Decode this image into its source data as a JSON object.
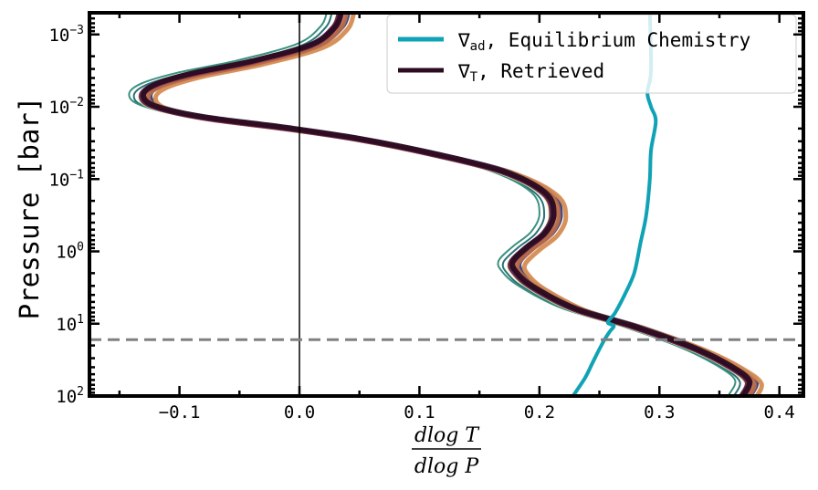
{
  "chart_data": {
    "type": "line",
    "title": "",
    "xlabel_numerator": "dlog T",
    "xlabel_denominator": "dlog P",
    "ylabel": "Pressure [bar]",
    "xlim": [
      -0.175,
      0.42
    ],
    "ylim_log10_pressure": [
      -3.3,
      2.0
    ],
    "y_scale": "log (inverted: low pressure at top)",
    "x_ticks": [
      -0.1,
      0.0,
      0.1,
      0.2,
      0.3,
      0.4
    ],
    "x_tick_labels": [
      "−0.1",
      "0.0",
      "0.1",
      "0.2",
      "0.3",
      "0.4"
    ],
    "y_tick_exponents": [
      "-3",
      "-2",
      "-1",
      "0",
      "1",
      "2"
    ],
    "y_tick_base": "10",
    "vertical_reference_x": 0.0,
    "horizontal_reference_log10_pressure": 1.22,
    "legend": {
      "placement": "top-right",
      "entries": [
        {
          "symbol": "∇",
          "subscript": "ad",
          "text": ", Equilibrium Chemistry",
          "color": "#0fa3b5"
        },
        {
          "symbol": "∇",
          "subscript": "T",
          "text": ", Retrieved",
          "color": "#2b0c22"
        }
      ]
    },
    "adiabat": {
      "name": "∇ad, Equilibrium Chemistry",
      "color": "#0fa3b5",
      "points": [
        [
          0.292,
          -3.3
        ],
        [
          0.293,
          -2.5
        ],
        [
          0.29,
          -2.2
        ],
        [
          0.293,
          -2.0
        ],
        [
          0.297,
          -1.8
        ],
        [
          0.293,
          -1.4
        ],
        [
          0.292,
          -1.0
        ],
        [
          0.289,
          -0.5
        ],
        [
          0.284,
          -0.1
        ],
        [
          0.279,
          0.3
        ],
        [
          0.271,
          0.6
        ],
        [
          0.263,
          0.85
        ],
        [
          0.257,
          0.98
        ],
        [
          0.262,
          1.03
        ],
        [
          0.259,
          1.1
        ],
        [
          0.255,
          1.2
        ],
        [
          0.25,
          1.35
        ],
        [
          0.244,
          1.55
        ],
        [
          0.238,
          1.75
        ],
        [
          0.228,
          2.0
        ]
      ]
    },
    "retrieved_base": [
      [
        0.035,
        -3.3
      ],
      [
        0.03,
        -3.1
      ],
      [
        0.01,
        -2.85
      ],
      [
        -0.04,
        -2.62
      ],
      [
        -0.09,
        -2.45
      ],
      [
        -0.12,
        -2.3
      ],
      [
        -0.13,
        -2.15
      ],
      [
        -0.12,
        -2.0
      ],
      [
        -0.08,
        -1.85
      ],
      [
        -0.01,
        -1.7
      ],
      [
        0.05,
        -1.55
      ],
      [
        0.11,
        -1.35
      ],
      [
        0.17,
        -1.1
      ],
      [
        0.205,
        -0.8
      ],
      [
        0.212,
        -0.5
      ],
      [
        0.205,
        -0.25
      ],
      [
        0.19,
        -0.05
      ],
      [
        0.178,
        0.15
      ],
      [
        0.181,
        0.3
      ],
      [
        0.195,
        0.5
      ],
      [
        0.23,
        0.8
      ],
      [
        0.28,
        1.05
      ],
      [
        0.33,
        1.35
      ],
      [
        0.36,
        1.6
      ],
      [
        0.375,
        1.8
      ],
      [
        0.37,
        2.0
      ]
    ],
    "retrieved_series": [
      {
        "name": "retrieved-1",
        "color": "#2e3d7a",
        "dx": 0.006,
        "dy": 0.0,
        "width": 4
      },
      {
        "name": "retrieved-2",
        "color": "#1f6a72",
        "dx": -0.008,
        "dy": 0.0,
        "width": 2
      },
      {
        "name": "retrieved-3",
        "color": "#2f8b78",
        "dx": -0.012,
        "dy": -0.02,
        "width": 2
      },
      {
        "name": "retrieved-4",
        "color": "#e8dca8",
        "dx": -0.003,
        "dy": 0.01,
        "width": 4
      },
      {
        "name": "retrieved-5",
        "color": "#d58c53",
        "dx": 0.01,
        "dy": 0.03,
        "width": 5
      },
      {
        "name": "retrieved-6",
        "color": "#b86a47",
        "dx": 0.004,
        "dy": 0.02,
        "width": 5
      },
      {
        "name": "retrieved-7",
        "color": "#8e3e4f",
        "dx": 0.0,
        "dy": 0.01,
        "width": 5
      },
      {
        "name": "retrieved-8",
        "color": "#5f2347",
        "dx": -0.002,
        "dy": 0.0,
        "width": 5
      },
      {
        "name": "retrieved-9",
        "color": "#2b0c22",
        "dx": 0.0,
        "dy": -0.01,
        "width": 6
      }
    ]
  }
}
